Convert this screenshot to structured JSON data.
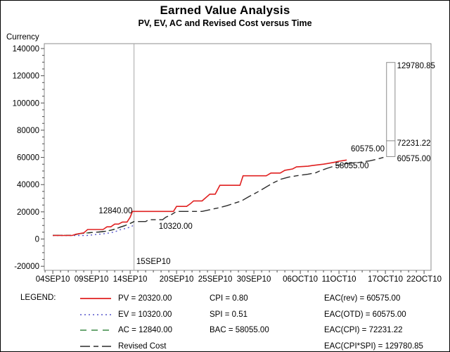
{
  "header": {
    "title": "Earned Value Analysis",
    "subtitle": "PV, EV, AC and Revised Cost versus Time"
  },
  "chart_data": {
    "type": "line",
    "title": "Earned Value Analysis",
    "subtitle": "PV, EV, AC and Revised Cost versus Time",
    "grid": false,
    "y_axis": {
      "label": "Currency",
      "min": -20000,
      "max": 140000,
      "major_ticks": [
        {
          "value": -20000,
          "label": "-20000"
        },
        {
          "value": 0,
          "label": "0"
        },
        {
          "value": 20000,
          "label": "20000"
        },
        {
          "value": 40000,
          "label": "40000"
        },
        {
          "value": 60000,
          "label": "60000"
        },
        {
          "value": 80000,
          "label": "80000"
        },
        {
          "value": 100000,
          "label": "100000"
        },
        {
          "value": 120000,
          "label": "120000"
        },
        {
          "value": 140000,
          "label": "140000"
        }
      ],
      "minor_tick_interval": 5000
    },
    "x_axis": {
      "unit": "calendar days, day 0 = 04SEP10",
      "min": 0,
      "max": 48,
      "major_ticks": [
        {
          "day": 0,
          "label": "04SEP10"
        },
        {
          "day": 5,
          "label": "09SEP10"
        },
        {
          "day": 10,
          "label": "14SEP10"
        },
        {
          "day": 16,
          "label": "20SEP10"
        },
        {
          "day": 21,
          "label": "25SEP10"
        },
        {
          "day": 26,
          "label": "30SEP10"
        },
        {
          "day": 32,
          "label": "06OCT10"
        },
        {
          "day": 37,
          "label": "11OCT10"
        },
        {
          "day": 43,
          "label": "17OCT10"
        },
        {
          "day": 48,
          "label": "22OCT10"
        }
      ],
      "minor_tick_interval": 1
    },
    "reference_line": {
      "day": 10.5,
      "label": "15SEP10",
      "color": "#a8a8a8"
    },
    "series": [
      {
        "name": "EV",
        "color": "#5555cc",
        "style": "dotted",
        "points": [
          [
            0,
            2600
          ],
          [
            4.4,
            2600
          ],
          [
            5.5,
            3300
          ],
          [
            6.3,
            3700
          ],
          [
            7,
            4200
          ],
          [
            8,
            5200
          ],
          [
            8.6,
            6700
          ],
          [
            9.4,
            7800
          ],
          [
            10,
            8700
          ],
          [
            10.5,
            10320
          ]
        ]
      },
      {
        "name": "AC",
        "color": "#3c8a46",
        "style": "dashed",
        "points": [
          [
            0,
            2700
          ],
          [
            2.5,
            2700
          ],
          [
            3.5,
            4000
          ],
          [
            5,
            4800
          ],
          [
            6,
            5200
          ],
          [
            7,
            5800
          ],
          [
            7.5,
            6500
          ],
          [
            8,
            7200
          ],
          [
            8.7,
            8700
          ],
          [
            9.3,
            9800
          ],
          [
            9.8,
            11000
          ],
          [
            10.2,
            12000
          ],
          [
            10.5,
            12840
          ]
        ]
      },
      {
        "name": "Revised Cost",
        "color": "#2b2b2b",
        "style": "dashdot",
        "points": [
          [
            0,
            2700
          ],
          [
            2.5,
            2700
          ],
          [
            3.5,
            4000
          ],
          [
            5,
            4800
          ],
          [
            6,
            5200
          ],
          [
            7,
            5800
          ],
          [
            7.5,
            6500
          ],
          [
            8,
            7200
          ],
          [
            8.7,
            8700
          ],
          [
            9.3,
            9800
          ],
          [
            9.8,
            11000
          ],
          [
            10.2,
            12000
          ],
          [
            10.5,
            12840
          ],
          [
            12,
            12840
          ],
          [
            12.4,
            14200
          ],
          [
            14.2,
            14200
          ],
          [
            14.6,
            16000
          ],
          [
            15.2,
            17500
          ],
          [
            16,
            20320
          ],
          [
            19.3,
            20320
          ],
          [
            20.5,
            21800
          ],
          [
            21.5,
            23000
          ],
          [
            22.5,
            24500
          ],
          [
            23.3,
            26000
          ],
          [
            24.4,
            28000
          ],
          [
            25.3,
            31000
          ],
          [
            26.3,
            34000
          ],
          [
            27.3,
            37300
          ],
          [
            28.4,
            41000
          ],
          [
            29.5,
            44000
          ],
          [
            30.5,
            45500
          ],
          [
            31.5,
            46500
          ],
          [
            33,
            47700
          ],
          [
            34,
            48700
          ],
          [
            34.5,
            50000
          ],
          [
            35.5,
            52000
          ],
          [
            36.6,
            54000
          ],
          [
            38,
            55500
          ],
          [
            39.5,
            56200
          ],
          [
            41,
            57500
          ],
          [
            42,
            58800
          ],
          [
            43.1,
            60575
          ]
        ]
      },
      {
        "name": "PV",
        "color": "#e02020",
        "style": "solid",
        "points": [
          [
            0,
            2600
          ],
          [
            2.5,
            2600
          ],
          [
            3,
            3600
          ],
          [
            4,
            4500
          ],
          [
            4.5,
            7000
          ],
          [
            6.5,
            7000
          ],
          [
            7,
            9000
          ],
          [
            7.5,
            9000
          ],
          [
            8,
            11000
          ],
          [
            8.5,
            11000
          ],
          [
            9,
            12500
          ],
          [
            9.6,
            12500
          ],
          [
            10,
            16000
          ],
          [
            10.3,
            20320
          ],
          [
            15.6,
            20320
          ],
          [
            16,
            24000
          ],
          [
            17.3,
            24000
          ],
          [
            17.8,
            26000
          ],
          [
            18.2,
            28000
          ],
          [
            19.3,
            28000
          ],
          [
            20.3,
            33000
          ],
          [
            21,
            33000
          ],
          [
            21.6,
            39500
          ],
          [
            24.2,
            39500
          ],
          [
            24.6,
            46500
          ],
          [
            27.6,
            46500
          ],
          [
            28.2,
            48500
          ],
          [
            29.4,
            48500
          ],
          [
            30,
            50500
          ],
          [
            31,
            51500
          ],
          [
            31.5,
            53000
          ],
          [
            33,
            53500
          ],
          [
            33.5,
            54000
          ],
          [
            35,
            55000
          ],
          [
            35.5,
            55500
          ],
          [
            36.5,
            56500
          ],
          [
            37,
            57200
          ],
          [
            38,
            58055
          ]
        ]
      }
    ],
    "annotations": [
      {
        "name": "ac-value",
        "text": "12840.00",
        "day": 10.3,
        "value": 20900,
        "anchor": "end"
      },
      {
        "name": "ev-value",
        "text": "10320.00",
        "day": 13.7,
        "value": 9500,
        "anchor": "start"
      },
      {
        "name": "timenow-date",
        "text": "15SEP10",
        "day": 10.8,
        "value": -16400,
        "anchor": "start"
      },
      {
        "name": "eac-rev-value",
        "text": "60575.00",
        "day": 42.9,
        "value": 66500,
        "anchor": "end"
      },
      {
        "name": "bac-end-value",
        "text": "58055.00",
        "day": 36.5,
        "value": 54000,
        "anchor": "start"
      },
      {
        "name": "eac-cpi-spi-value",
        "text": "129780.85",
        "day": 44.5,
        "value": 127600,
        "anchor": "start"
      },
      {
        "name": "eac-cpi-value",
        "text": "72231.22",
        "day": 44.5,
        "value": 70600,
        "anchor": "start"
      },
      {
        "name": "eac-otd-value",
        "text": "60575.00",
        "day": 44.5,
        "value": 59200,
        "anchor": "start"
      }
    ],
    "eac_bar": {
      "day_start": 43.15,
      "day_end": 44.25,
      "bottom": 60575.0,
      "divider": 72231.22,
      "top": 129780.85
    }
  },
  "legend": {
    "heading": "LEGEND:",
    "series_items": [
      {
        "label": "PV = 20320.00",
        "series": "PV"
      },
      {
        "label": "EV = 10320.00",
        "series": "EV"
      },
      {
        "label": "AC = 12840.00",
        "series": "AC"
      },
      {
        "label": "Revised Cost",
        "series": "Revised Cost"
      }
    ],
    "stats": [
      "CPI = 0.80",
      "SPI = 0.51",
      "BAC = 58055.00"
    ],
    "eac": [
      "EAC(rev) = 60575.00",
      "EAC(OTD) = 60575.00",
      "EAC(CPI) = 72231.22",
      "EAC(CPI*SPI) = 129780.85"
    ]
  },
  "colors": {
    "pv": "#e02020",
    "ev": "#5555cc",
    "ac": "#3c8a46",
    "revised_cost": "#2b2b2b",
    "frame": "#8c8c8c",
    "tick": "#4d4d4d",
    "reference_line": "#a8a8a8"
  }
}
